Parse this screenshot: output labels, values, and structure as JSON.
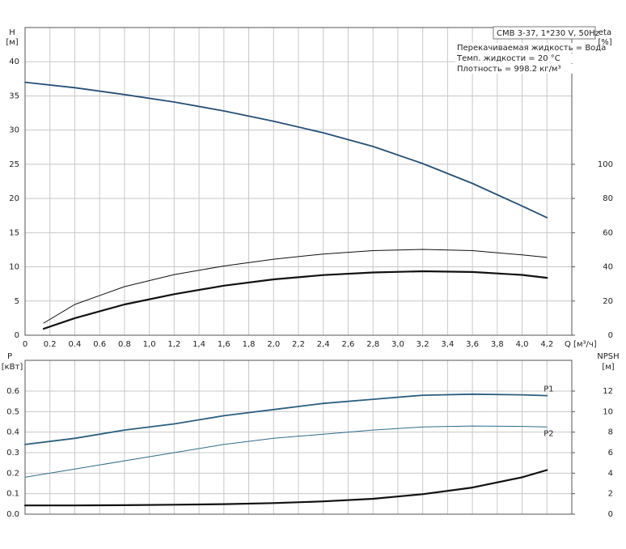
{
  "chart_data": [
    {
      "type": "line",
      "ylabel": "H",
      "yunit": "[м]",
      "y2label": "eta",
      "y2unit": "[%]",
      "xlabel": "Q [м³/ч]",
      "box_title": "CMB 3-37, 1*230 V, 50Hz",
      "annotations": [
        "Перекачиваемая жидкость = Вода",
        "Темп. жидкости = 20 °C",
        "Плотность = 998.2 кг/м³"
      ],
      "xlim": [
        0,
        4.4
      ],
      "xticks": [
        0,
        0.2,
        0.4,
        0.6,
        0.8,
        {
          "value": 1,
          "label": "1,0"
        },
        {
          "value": 1.2,
          "label": "1,2"
        },
        {
          "value": 1.4,
          "label": "1,4"
        },
        {
          "value": 1.6,
          "label": "1,6"
        },
        {
          "value": 1.8,
          "label": "1,8"
        },
        {
          "value": 2,
          "label": "2,0"
        },
        {
          "value": 2.2,
          "label": "2,2"
        },
        {
          "value": 2.4,
          "label": "2,4"
        },
        {
          "value": 2.6,
          "label": "2,6"
        },
        {
          "value": 2.8,
          "label": "2,8"
        },
        {
          "value": 3,
          "label": "3,0"
        },
        {
          "value": 3.2,
          "label": "3,2"
        },
        {
          "value": 3.4,
          "label": "3,4"
        },
        {
          "value": 3.6,
          "label": "3,6"
        },
        {
          "value": 3.8,
          "label": "3,8"
        },
        {
          "value": 4,
          "label": "4,0"
        },
        {
          "value": 4.2,
          "label": "4,2"
        }
      ],
      "ylim": [
        0,
        45
      ],
      "yticks": [
        0,
        5,
        10,
        15,
        20,
        25,
        30,
        35,
        40
      ],
      "y2lim": [
        0,
        180
      ],
      "y2ticks": [
        0,
        20,
        40,
        60,
        80,
        100
      ],
      "grid": true,
      "series": [
        {
          "color": "#264f78",
          "x": [
            0,
            0.4,
            0.8,
            1.2,
            1.6,
            2.0,
            2.4,
            2.8,
            3.2,
            3.6,
            4.0,
            4.2
          ],
          "values": [
            37,
            36.2,
            35.2,
            34.1,
            32.8,
            31.3,
            29.6,
            27.6,
            25.1,
            22.2,
            18.9,
            17.2
          ]
        },
        {
          "color": "#111111",
          "axis": "y2",
          "x": [
            0.15,
            0.4,
            0.8,
            1.2,
            1.6,
            2.0,
            2.4,
            2.8,
            3.2,
            3.6,
            4.0,
            4.2
          ],
          "values": [
            7.1,
            18,
            28.4,
            35.5,
            40.5,
            44.5,
            47.5,
            49.5,
            50.2,
            49.5,
            47,
            45.5
          ]
        },
        {
          "color": "#111111",
          "axis": "y2",
          "x": [
            0.15,
            0.4,
            0.8,
            1.2,
            1.6,
            2.0,
            2.4,
            2.8,
            3.2,
            3.6,
            4.0,
            4.2
          ],
          "values": [
            3.8,
            10,
            18,
            24,
            29,
            32.7,
            35.2,
            36.7,
            37.4,
            37,
            35.3,
            33.6
          ]
        }
      ]
    },
    {
      "type": "line",
      "ylabel": "P",
      "yunit": "[кВт]",
      "y2label": "NPSH",
      "y2unit": "[м]",
      "xlim": [
        0,
        4.4
      ],
      "ylim": [
        0,
        0.75
      ],
      "yticks": [
        {
          "value": 0,
          "label": "0.0"
        },
        0.1,
        0.2,
        0.3,
        0.4,
        0.5,
        0.6
      ],
      "y2lim": [
        0,
        15
      ],
      "y2ticks": [
        0,
        2,
        4,
        6,
        8,
        10,
        12
      ],
      "grid": true,
      "series": [
        {
          "name": "P1",
          "color": "#2a5f80",
          "x": [
            0,
            0.4,
            0.8,
            1.2,
            1.6,
            2.0,
            2.4,
            2.8,
            3.2,
            3.6,
            4.0,
            4.2
          ],
          "values": [
            0.34,
            0.37,
            0.41,
            0.44,
            0.48,
            0.51,
            0.54,
            0.56,
            0.58,
            0.585,
            0.582,
            0.578
          ]
        },
        {
          "name": "P2",
          "color": "#2f6c8c",
          "x": [
            0,
            0.4,
            0.8,
            1.2,
            1.6,
            2.0,
            2.4,
            2.8,
            3.2,
            3.6,
            4.0,
            4.2
          ],
          "values": [
            0.18,
            0.22,
            0.26,
            0.3,
            0.34,
            0.37,
            0.39,
            0.41,
            0.425,
            0.43,
            0.428,
            0.425
          ]
        },
        {
          "color": "#111111",
          "axis": "y2",
          "x": [
            0,
            0.4,
            0.8,
            1.2,
            1.6,
            2.0,
            2.4,
            2.8,
            3.2,
            3.6,
            4.0,
            4.2
          ],
          "values": [
            0.85,
            0.85,
            0.88,
            0.92,
            0.98,
            1.08,
            1.25,
            1.5,
            1.95,
            2.6,
            3.6,
            4.3
          ]
        }
      ]
    }
  ]
}
